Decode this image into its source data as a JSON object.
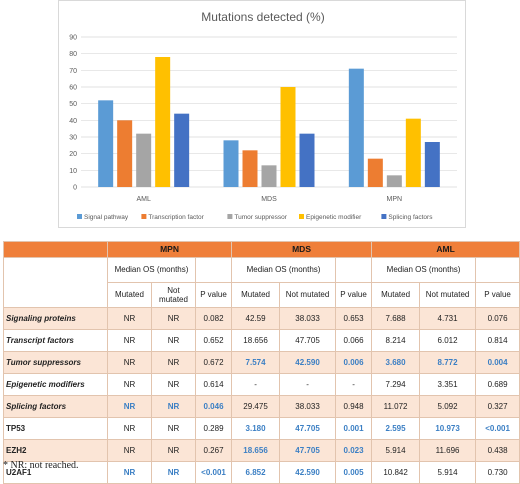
{
  "chart_data": {
    "type": "bar",
    "title": "Mutations detected (%)",
    "categories": [
      "AML",
      "MDS",
      "MPN"
    ],
    "ylim": [
      0,
      90
    ],
    "yticks": [
      0,
      10,
      20,
      30,
      40,
      50,
      60,
      70,
      80,
      90
    ],
    "grid": true,
    "legend_position": "bottom",
    "series": [
      {
        "name": "Signal pathway",
        "color": "#5b9bd5",
        "values": [
          52,
          28,
          71
        ]
      },
      {
        "name": "Transcription factor",
        "color": "#ed7d31",
        "values": [
          40,
          22,
          17
        ]
      },
      {
        "name": "Tumor suppressor",
        "color": "#a5a5a5",
        "values": [
          32,
          13,
          7
        ]
      },
      {
        "name": "Epigenetic modifier",
        "color": "#ffc000",
        "values": [
          78,
          60,
          41
        ]
      },
      {
        "name": "Splicing factors",
        "color": "#4472c4",
        "values": [
          44,
          32,
          27
        ]
      }
    ]
  },
  "table": {
    "groups": [
      "MPN",
      "MDS",
      "AML"
    ],
    "median_os_label": "Median OS (months)",
    "col_mutated": "Mutated",
    "col_not_mutated": "Not mutated",
    "col_p": "P value",
    "rows": [
      {
        "label": "Signaling proteins",
        "italic": true,
        "cells": [
          "NR",
          "NR",
          "0.082",
          "42.59",
          "38.033",
          "0.653",
          "7.688",
          "4.731",
          "0.076"
        ],
        "blue": []
      },
      {
        "label": "Transcript factors",
        "italic": true,
        "cells": [
          "NR",
          "NR",
          "0.652",
          "18.656",
          "47.705",
          "0.066",
          "8.214",
          "6.012",
          "0.814"
        ],
        "blue": []
      },
      {
        "label": "Tumor suppressors",
        "italic": true,
        "cells": [
          "NR",
          "NR",
          "0.672",
          "7.574",
          "42.590",
          "0.006",
          "3.680",
          "8.772",
          "0.004"
        ],
        "blue": [
          3,
          4,
          5,
          6,
          7,
          8
        ]
      },
      {
        "label": "Epigenetic modifiers",
        "italic": true,
        "cells": [
          "NR",
          "NR",
          "0.614",
          "-",
          "-",
          "-",
          "7.294",
          "3.351",
          "0.689"
        ],
        "blue": []
      },
      {
        "label": "Splicing factors",
        "italic": true,
        "cells": [
          "NR",
          "NR",
          "0.046",
          "29.475",
          "38.033",
          "0.948",
          "11.072",
          "5.092",
          "0.327"
        ],
        "blue": [
          0,
          1,
          2
        ]
      },
      {
        "label": "TP53",
        "italic": false,
        "cells": [
          "NR",
          "NR",
          "0.289",
          "3.180",
          "47.705",
          "0.001",
          "2.595",
          "10.973",
          "<0.001"
        ],
        "blue": [
          3,
          4,
          5,
          6,
          7,
          8
        ]
      },
      {
        "label": "EZH2",
        "italic": false,
        "cells": [
          "NR",
          "NR",
          "0.267",
          "18.656",
          "47.705",
          "0.023",
          "5.914",
          "11.696",
          "0.438"
        ],
        "blue": [
          3,
          4,
          5
        ]
      },
      {
        "label": "U2AF1",
        "italic": false,
        "cells": [
          "NR",
          "NR",
          "<0.001",
          "6.852",
          "42.590",
          "0.005",
          "10.842",
          "5.914",
          "0.730"
        ],
        "blue": [
          0,
          1,
          2,
          3,
          4,
          5
        ]
      }
    ]
  },
  "footnote": "* NR: not reached."
}
